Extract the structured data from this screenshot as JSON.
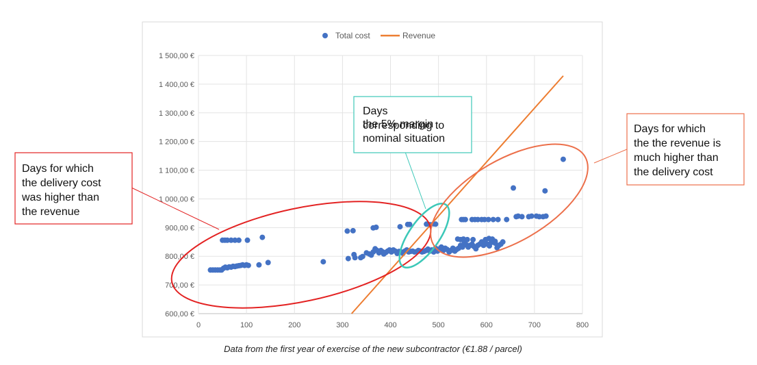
{
  "chart_data": {
    "type": "scatter",
    "title": "",
    "xlabel": "",
    "ylabel": "",
    "xlim": [
      0,
      800
    ],
    "ylim": [
      600,
      1500
    ],
    "x_ticks": [
      "0",
      "100",
      "200",
      "300",
      "400",
      "500",
      "600",
      "700",
      "800"
    ],
    "y_ticks": [
      "600,00 €",
      "700,00 €",
      "800,00 €",
      "900,00 €",
      "1 000,00 €",
      "1 100,00 €",
      "1 200,00 €",
      "1 300,00 €",
      "1 400,00 €",
      "1 500,00 €"
    ],
    "grid": "vertical-and-horizontal",
    "legend_position": "top-center",
    "series": [
      {
        "name": "Total cost",
        "kind": "scatter",
        "color": "#4472C4",
        "points": [
          [
            25,
            752
          ],
          [
            30,
            752
          ],
          [
            35,
            752
          ],
          [
            40,
            752
          ],
          [
            45,
            752
          ],
          [
            48,
            752
          ],
          [
            52,
            758
          ],
          [
            56,
            762
          ],
          [
            60,
            760
          ],
          [
            64,
            763
          ],
          [
            68,
            762
          ],
          [
            72,
            765
          ],
          [
            76,
            764
          ],
          [
            80,
            766
          ],
          [
            84,
            767
          ],
          [
            88,
            768
          ],
          [
            92,
            770
          ],
          [
            96,
            768
          ],
          [
            100,
            770
          ],
          [
            104,
            768
          ],
          [
            50,
            856
          ],
          [
            55,
            856
          ],
          [
            60,
            856
          ],
          [
            68,
            856
          ],
          [
            76,
            856
          ],
          [
            84,
            856
          ],
          [
            102,
            856
          ],
          [
            126,
            770
          ],
          [
            133,
            866
          ],
          [
            145,
            778
          ],
          [
            260,
            781
          ],
          [
            312,
            792
          ],
          [
            310,
            888
          ],
          [
            322,
            889
          ],
          [
            324,
            806
          ],
          [
            326,
            795
          ],
          [
            338,
            795
          ],
          [
            342,
            799
          ],
          [
            350,
            812
          ],
          [
            356,
            808
          ],
          [
            360,
            804
          ],
          [
            364,
            815
          ],
          [
            368,
            826
          ],
          [
            372,
            820
          ],
          [
            376,
            812
          ],
          [
            380,
            820
          ],
          [
            384,
            815
          ],
          [
            386,
            808
          ],
          [
            390,
            813
          ],
          [
            394,
            818
          ],
          [
            398,
            822
          ],
          [
            402,
            815
          ],
          [
            406,
            822
          ],
          [
            410,
            818
          ],
          [
            414,
            810
          ],
          [
            418,
            817
          ],
          [
            422,
            815
          ],
          [
            426,
            810
          ],
          [
            430,
            818
          ],
          [
            434,
            822
          ],
          [
            438,
            815
          ],
          [
            442,
            817
          ],
          [
            446,
            818
          ],
          [
            450,
            815
          ],
          [
            454,
            816
          ],
          [
            458,
            820
          ],
          [
            462,
            818
          ],
          [
            466,
            815
          ],
          [
            470,
            817
          ],
          [
            474,
            820
          ],
          [
            478,
            825
          ],
          [
            482,
            818
          ],
          [
            486,
            822
          ],
          [
            490,
            815
          ],
          [
            494,
            828
          ],
          [
            498,
            818
          ],
          [
            502,
            825
          ],
          [
            506,
            832
          ],
          [
            510,
            820
          ],
          [
            514,
            828
          ],
          [
            518,
            824
          ],
          [
            522,
            815
          ],
          [
            526,
            820
          ],
          [
            530,
            828
          ],
          [
            534,
            818
          ],
          [
            538,
            824
          ],
          [
            542,
            828
          ],
          [
            546,
            838
          ],
          [
            550,
            832
          ],
          [
            554,
            846
          ],
          [
            558,
            840
          ],
          [
            562,
            832
          ],
          [
            566,
            838
          ],
          [
            570,
            842
          ],
          [
            574,
            834
          ],
          [
            578,
            826
          ],
          [
            582,
            838
          ],
          [
            586,
            842
          ],
          [
            590,
            850
          ],
          [
            594,
            838
          ],
          [
            598,
            848
          ],
          [
            602,
            842
          ],
          [
            606,
            836
          ],
          [
            610,
            848
          ],
          [
            614,
            852
          ],
          [
            618,
            846
          ],
          [
            622,
            830
          ],
          [
            626,
            838
          ],
          [
            630,
            842
          ],
          [
            634,
            850
          ],
          [
            364,
            899
          ],
          [
            370,
            901
          ],
          [
            420,
            903
          ],
          [
            436,
            911
          ],
          [
            440,
            911
          ],
          [
            475,
            912
          ],
          [
            482,
            910
          ],
          [
            490,
            913
          ],
          [
            494,
            912
          ],
          [
            548,
            928
          ],
          [
            552,
            928
          ],
          [
            556,
            928
          ],
          [
            570,
            928
          ],
          [
            576,
            928
          ],
          [
            582,
            928
          ],
          [
            590,
            928
          ],
          [
            596,
            928
          ],
          [
            604,
            928
          ],
          [
            614,
            928
          ],
          [
            624,
            928
          ],
          [
            642,
            928
          ],
          [
            662,
            938
          ],
          [
            666,
            940
          ],
          [
            674,
            938
          ],
          [
            688,
            938
          ],
          [
            694,
            940
          ],
          [
            704,
            940
          ],
          [
            710,
            938
          ],
          [
            718,
            938
          ],
          [
            724,
            940
          ],
          [
            540,
            860
          ],
          [
            546,
            858
          ],
          [
            552,
            860
          ],
          [
            560,
            858
          ],
          [
            572,
            858
          ],
          [
            598,
            858
          ],
          [
            605,
            862
          ],
          [
            612,
            860
          ],
          [
            618,
            852
          ],
          [
            656,
            1038
          ],
          [
            722,
            1028
          ],
          [
            760,
            1138
          ]
        ]
      },
      {
        "name": "Revenue",
        "kind": "line",
        "color": "#ED7D31",
        "points": [
          [
            319,
            600
          ],
          [
            760,
            1429
          ]
        ]
      }
    ],
    "annotations": [
      {
        "text_lines": [
          "Days for which",
          "the delivery cost",
          "was higher than",
          "the revenue"
        ],
        "color": "#E32222"
      },
      {
        "text_lines": [
          "Days",
          "corresponding to",
          "the 5% margin",
          "nominal situation"
        ],
        "color": "#3CC8B8"
      },
      {
        "text_lines": [
          "Days for which",
          "the the revenue is",
          "much higher than",
          "the delivery cost"
        ],
        "color": "#EC6F4A"
      }
    ],
    "regions": [
      {
        "label": "cost-higher-region",
        "center": [
          210,
          832
        ],
        "color": "#E32222"
      },
      {
        "label": "nominal-margin-region",
        "center": [
          455,
          855
        ],
        "color": "#3CC8B8"
      },
      {
        "label": "revenue-higher-region",
        "center": [
          650,
          975
        ],
        "color": "#EC6F4A"
      }
    ]
  },
  "caption": "Data from the first year of exercise of the new subcontractor (€1.88 / parcel)"
}
